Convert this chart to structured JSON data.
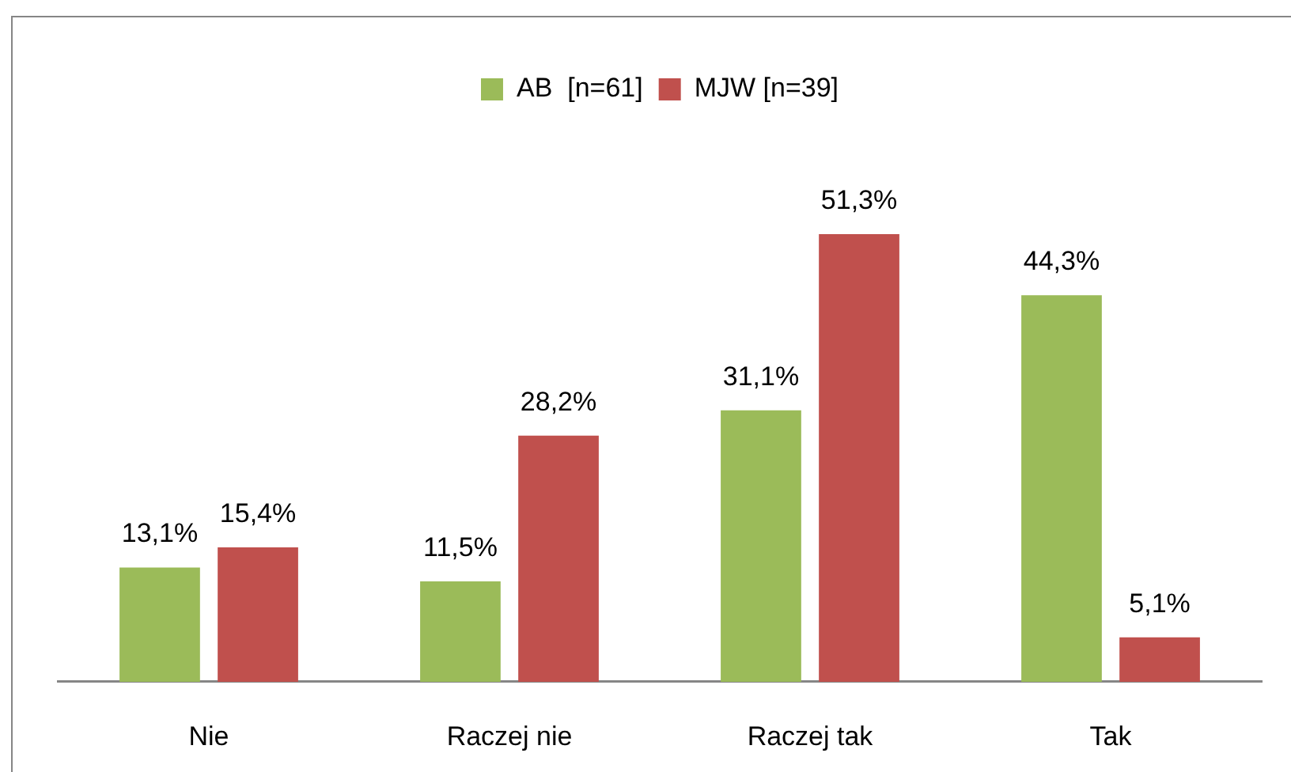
{
  "chart_data": {
    "type": "bar",
    "categories": [
      "Nie",
      "Raczej nie",
      "Raczej tak",
      "Tak"
    ],
    "series": [
      {
        "name": "AB  [n=61]",
        "color": "#9bbb59",
        "values": [
          13.1,
          11.5,
          31.1,
          44.3
        ],
        "value_labels": [
          "13,1%",
          "11,5%",
          "31,1%",
          "44,3%"
        ]
      },
      {
        "name": "MJW [n=39]",
        "color": "#c0504d",
        "values": [
          15.4,
          28.2,
          51.3,
          5.1
        ],
        "value_labels": [
          "15,4%",
          "28,2%",
          "51,3%",
          "5,1%"
        ]
      }
    ],
    "tick_labels": "x",
    "grid": false,
    "legend": "top"
  }
}
